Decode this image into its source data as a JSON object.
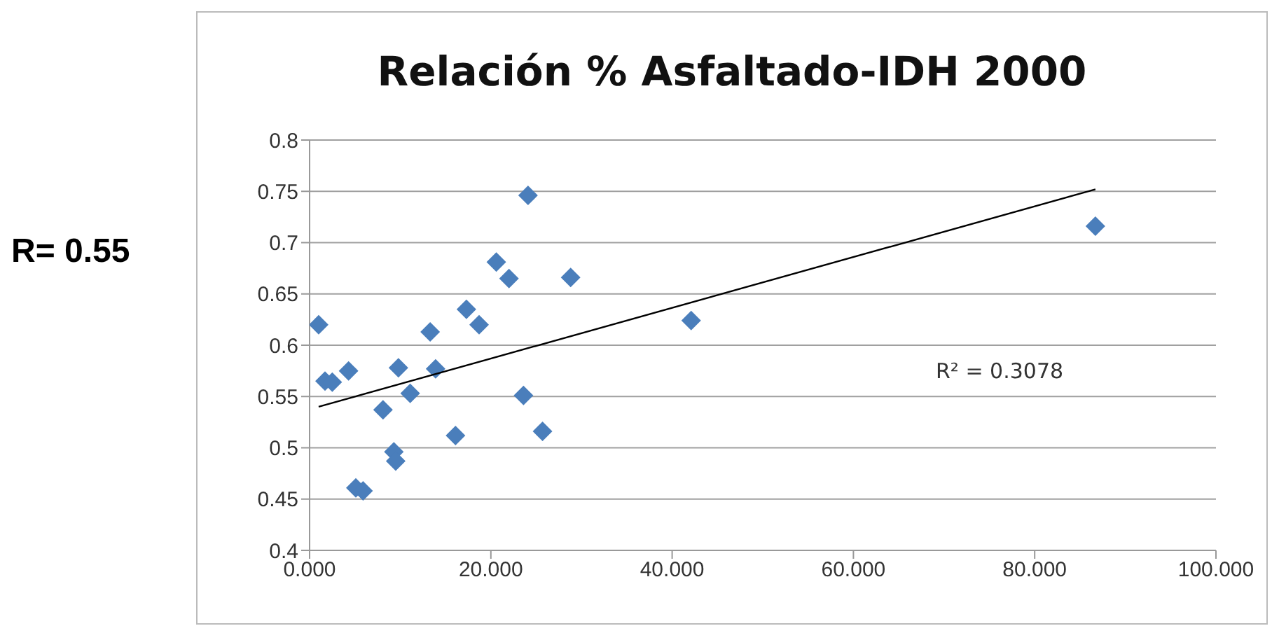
{
  "chart_data": {
    "type": "scatter",
    "title": "Relación % Asfaltado-IDH 2000",
    "xlim": [
      0,
      100
    ],
    "xticks": [
      {
        "value": 0,
        "label": "0.000"
      },
      {
        "value": 20,
        "label": "20.000"
      },
      {
        "value": 40,
        "label": "40.000"
      },
      {
        "value": 60,
        "label": "60.000"
      },
      {
        "value": 80,
        "label": "80.000"
      },
      {
        "value": 100,
        "label": "100.000"
      }
    ],
    "ylim": [
      0.4,
      0.8
    ],
    "yticks": [
      0.4,
      0.45,
      0.5,
      0.55,
      0.6,
      0.65,
      0.7,
      0.75,
      0.8
    ],
    "grid": "y",
    "marker": "diamond",
    "series": [
      {
        "color": "#4a7ebb",
        "x": [
          1.0,
          1.7,
          2.5,
          4.3,
          5.1,
          5.9,
          8.1,
          9.3,
          9.5,
          9.8,
          11.1,
          13.3,
          13.9,
          16.1,
          17.3,
          18.7,
          20.6,
          22.0,
          24.1,
          23.6,
          25.7,
          28.8,
          42.1,
          86.7
        ],
        "values": [
          0.62,
          0.565,
          0.564,
          0.575,
          0.461,
          0.458,
          0.537,
          0.496,
          0.487,
          0.578,
          0.553,
          0.613,
          0.577,
          0.512,
          0.635,
          0.62,
          0.681,
          0.665,
          0.746,
          0.551,
          0.516,
          0.666,
          0.624,
          0.716
        ]
      },
      {
        "type": "line",
        "marker": "none",
        "color": "#000000",
        "x": [
          1.0,
          86.7
        ],
        "values": [
          0.54,
          0.752
        ]
      }
    ],
    "annotations": [
      "R= 0.55",
      "R² = 0.3078"
    ]
  }
}
